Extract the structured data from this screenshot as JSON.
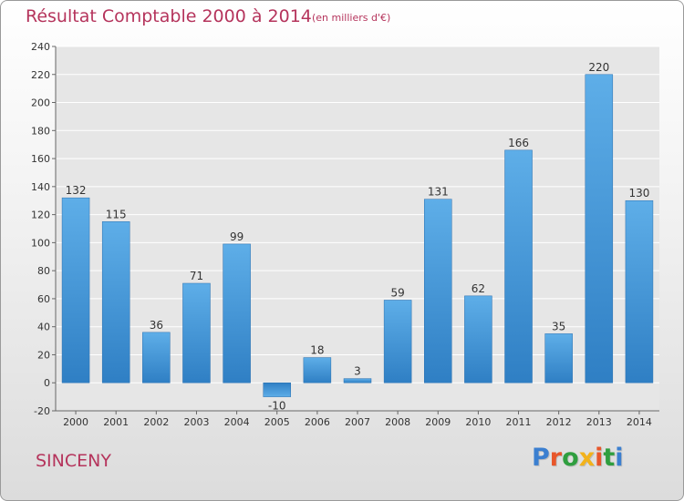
{
  "header": {
    "title": "Résultat Comptable 2000 à 2014",
    "subtitle": "(en milliers d'€)"
  },
  "footer": {
    "town": "SINCENY",
    "logo_text": "Proxiti",
    "logo_letter_colors": [
      "#3b7fd0",
      "#e8562a",
      "#2f9e3f",
      "#f2b21b",
      "#e8562a",
      "#2f9e3f"
    ]
  },
  "chart_data": {
    "type": "bar",
    "title": "Résultat Comptable 2000 à 2014",
    "subtitle": "(en milliers d'€)",
    "categories": [
      "2000",
      "2001",
      "2002",
      "2003",
      "2004",
      "2005",
      "2006",
      "2007",
      "2008",
      "2009",
      "2010",
      "2011",
      "2012",
      "2013",
      "2014"
    ],
    "values": [
      132,
      115,
      36,
      71,
      99,
      -10,
      18,
      3,
      59,
      131,
      62,
      166,
      35,
      220,
      130
    ],
    "data_labels": [
      "132",
      "115",
      "36",
      "71",
      "99",
      "-10",
      "18",
      "3",
      "59",
      "131",
      "62",
      "166",
      "35",
      "220",
      "130"
    ],
    "ylim": [
      -20,
      240
    ],
    "yticks": [
      -20,
      0,
      20,
      40,
      60,
      80,
      100,
      120,
      140,
      160,
      180,
      200,
      220,
      240
    ],
    "xlabel": "",
    "ylabel": "",
    "grid": true,
    "bar_color": "#4a9be0"
  }
}
